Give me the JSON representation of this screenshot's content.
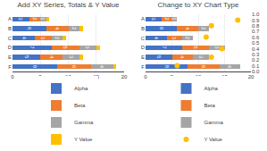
{
  "chart_data": [
    {
      "type": "bar",
      "title": "Add XY Series, Totals & Y Value",
      "orientation": "horizontal",
      "stacked": true,
      "data_labels": true,
      "categories": [
        "A",
        "B",
        "C",
        "D",
        "E",
        "F"
      ],
      "series": [
        {
          "name": "Alpha",
          "color": "#4472C4",
          "values": [
            3,
            6,
            4,
            7,
            5,
            8
          ]
        },
        {
          "name": "Beta",
          "color": "#ED7D31",
          "values": [
            2,
            4,
            3,
            5,
            4,
            6
          ]
        },
        {
          "name": "Gamma",
          "color": "#A5A5A5",
          "values": [
            1,
            2,
            2,
            3,
            3,
            4
          ]
        },
        {
          "name": "Y Value",
          "color": "#FFC000",
          "values": [
            0.6,
            0.6,
            0.6,
            0.6,
            0.6,
            0.6
          ],
          "data_labels": false
        }
      ],
      "xlim": [
        0,
        20
      ],
      "xticks": [
        0,
        5,
        10,
        15,
        20
      ],
      "grid": true,
      "legend": "bottom"
    },
    {
      "type": "bar",
      "title": "Change to XY Chart Type",
      "orientation": "horizontal",
      "stacked": true,
      "data_labels": true,
      "categories": [
        "A",
        "B",
        "C",
        "D",
        "E",
        "F"
      ],
      "series": [
        {
          "name": "Alpha",
          "color": "#4472C4",
          "values": [
            3,
            6,
            4,
            7,
            5,
            8
          ]
        },
        {
          "name": "Beta",
          "color": "#ED7D31",
          "values": [
            2,
            4,
            3,
            5,
            4,
            6
          ]
        },
        {
          "name": "Gamma",
          "color": "#A5A5A5",
          "values": [
            1,
            2,
            2,
            3,
            3,
            4
          ]
        },
        {
          "name": "Y Value",
          "type": "scatter",
          "axis": "y2",
          "color": "#FFC000",
          "marker": "circle",
          "data_labels": false,
          "x": [
            17.5,
            12.5,
            11.5,
            14.5,
            12.5,
            6.0
          ],
          "values": [
            0.9,
            0.8,
            0.6,
            0.4,
            0.25,
            0.1
          ]
        }
      ],
      "xlim": [
        0,
        20
      ],
      "xticks": [
        0,
        5,
        10,
        15,
        20
      ],
      "y2lim": [
        0,
        1
      ],
      "y2ticks": [
        {
          "value": 0,
          "label": "0.0"
        },
        0.1,
        0.2,
        0.3,
        0.4,
        0.5,
        0.6,
        0.7,
        0.8,
        0.9,
        {
          "value": 1,
          "label": "1.0"
        }
      ],
      "grid": true,
      "legend": "bottom"
    }
  ]
}
